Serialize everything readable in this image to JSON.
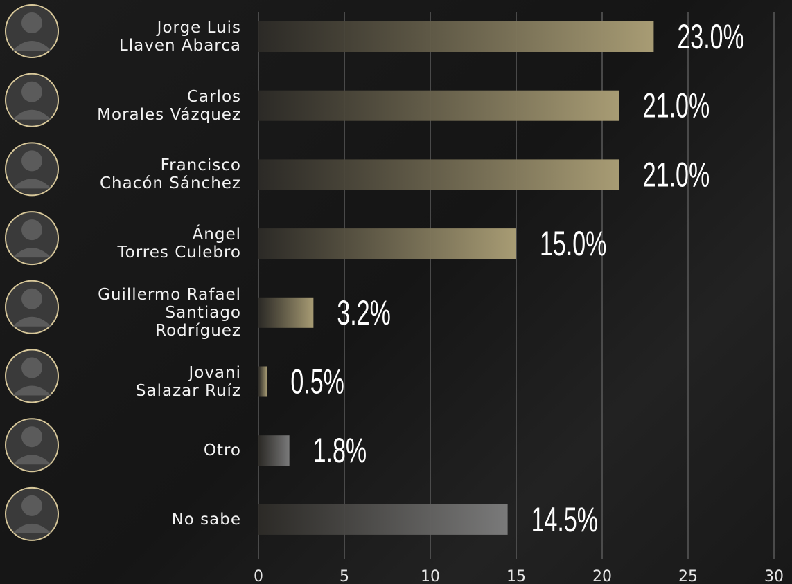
{
  "chart_data": {
    "type": "bar",
    "orientation": "horizontal",
    "categories": [
      "Jorge Luis\nLlaven Abarca",
      "Carlos\nMorales Vázquez",
      "Francisco\nChacón Sánchez",
      "Ángel\nTorres Culebro",
      "Guillermo Rafael\nSantiago\nRodríguez",
      "Jovani\nSalazar Ruíz",
      "Otro",
      "No sabe"
    ],
    "values": [
      23.0,
      21.0,
      21.0,
      15.0,
      3.2,
      0.5,
      1.8,
      14.5
    ],
    "value_labels": [
      "23.0%",
      "21.0%",
      "21.0%",
      "15.0%",
      "3.2%",
      "0.5%",
      "1.8%",
      "14.5%"
    ],
    "colors": [
      "#a89c74",
      "#a89c74",
      "#a89c74",
      "#a89c74",
      "#a89c74",
      "#a89c74",
      "#7a7a7a",
      "#7a7a7a"
    ],
    "xlim": [
      0,
      30
    ],
    "xticks": [
      0,
      5,
      10,
      15,
      20,
      25,
      30
    ],
    "grid": true
  }
}
